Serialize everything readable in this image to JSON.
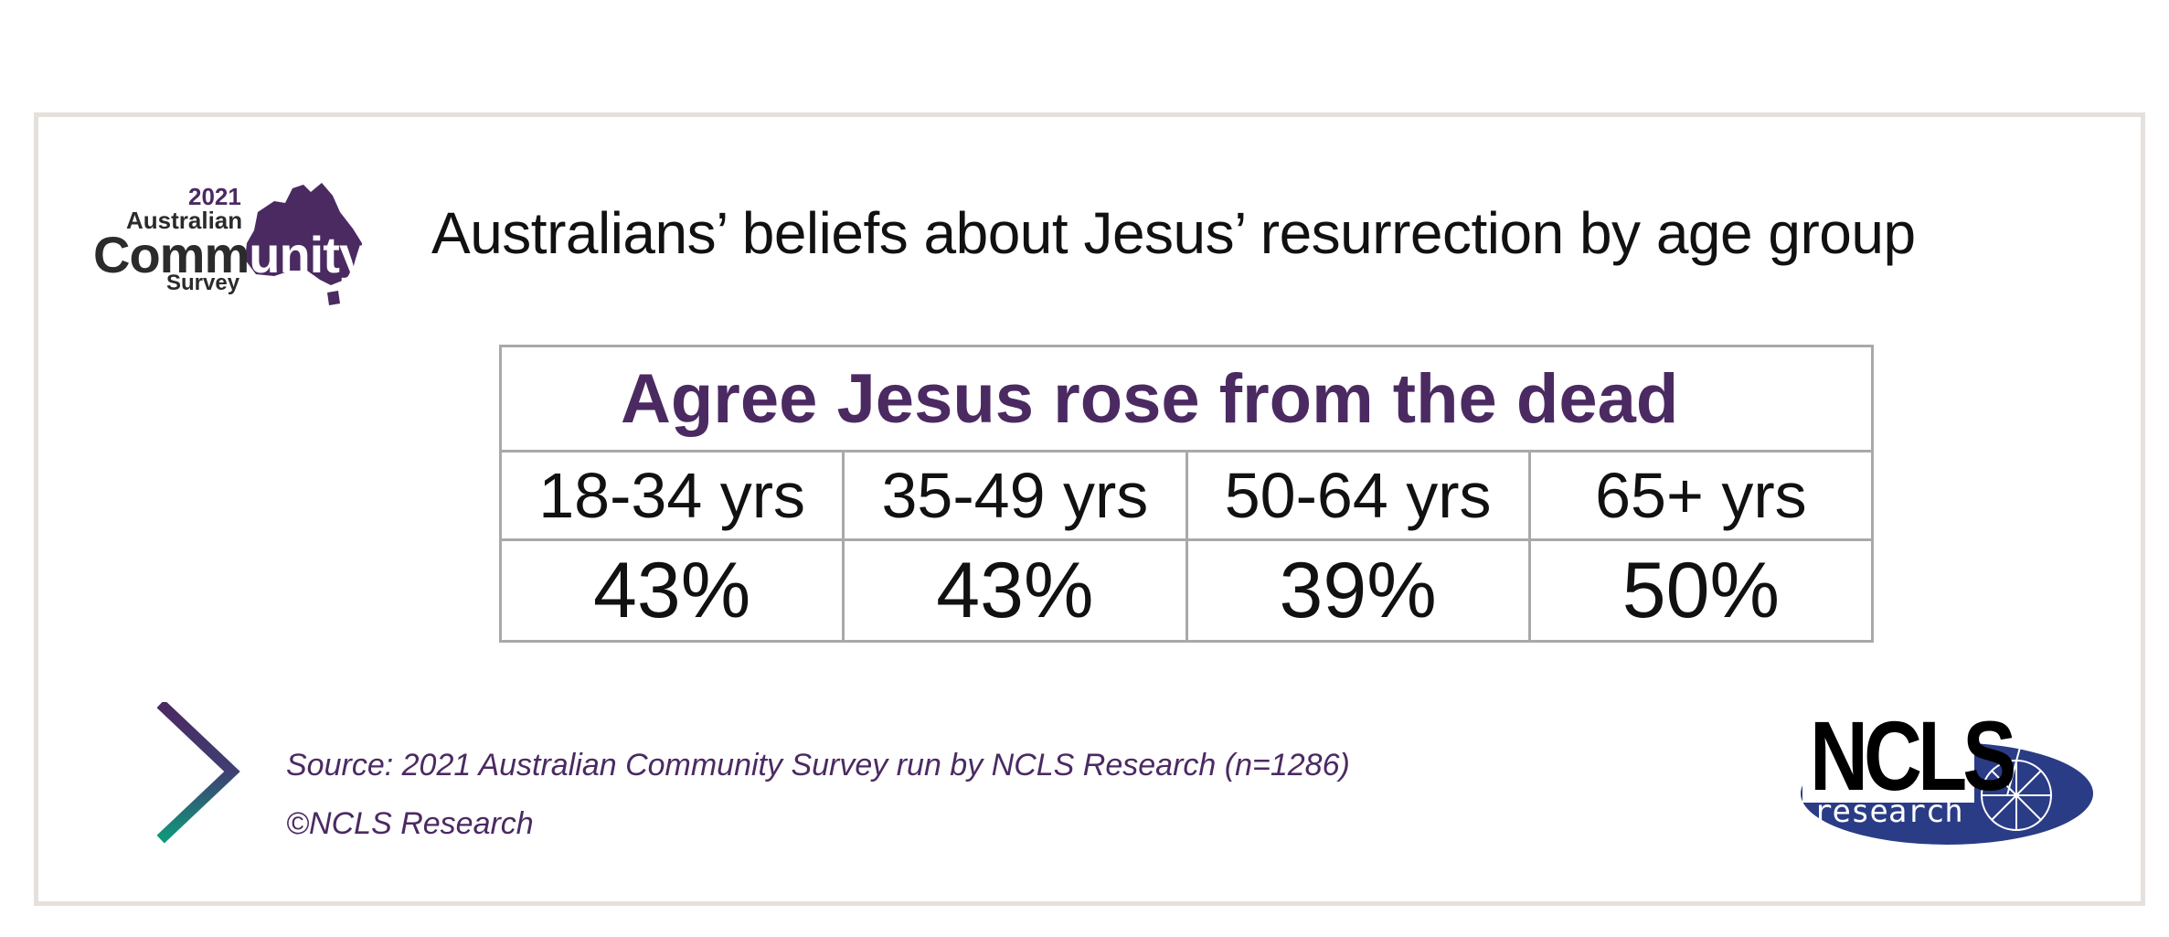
{
  "logo": {
    "year": "2021",
    "line1": "Australian",
    "line2_a": "Comm",
    "line2_b": "unity",
    "line3": "Survey"
  },
  "title": "Australians’ beliefs about Jesus’ resurrection by age group",
  "chart_data": {
    "type": "table",
    "title": "Agree Jesus rose from the dead",
    "categories": [
      "18-34 yrs",
      "35-49 yrs",
      "50-64 yrs",
      "65+ yrs"
    ],
    "values": [
      43,
      43,
      39,
      50
    ],
    "value_labels": [
      "43%",
      "43%",
      "39%",
      "50%"
    ]
  },
  "source": "Source:  2021 Australian Community Survey run by NCLS Research (n=1286)",
  "copyright": "©NCLS Research",
  "ncls_logo": {
    "name": "NCLS",
    "sub": "research"
  },
  "colors": {
    "brand_purple": "#4b2a62",
    "ncls_blue": "#2a3c86",
    "teal": "#12947a",
    "frame": "#e6e0dc"
  }
}
